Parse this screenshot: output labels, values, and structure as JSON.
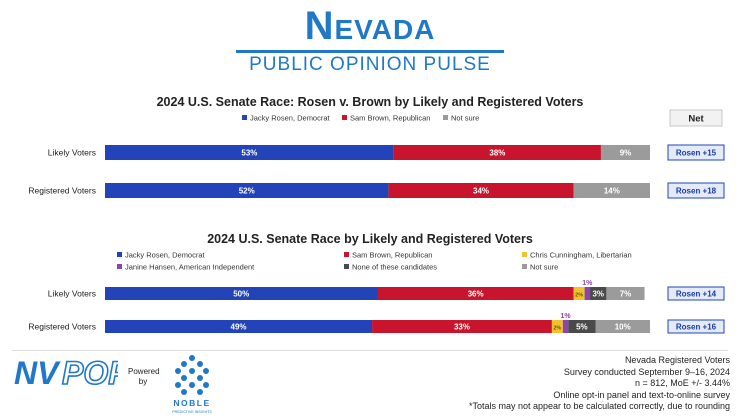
{
  "header": {
    "logo_title": "Nevada",
    "logo_subtitle": "PUBLIC OPINION PULSE"
  },
  "colors": {
    "rosen": "#2244b8",
    "brown": "#c8142c",
    "not_sure": "#9b9b9b",
    "cunningham": "#f2c12e",
    "hansen": "#8e44ad",
    "none": "#4a4a4a",
    "net_box_border": "#2244b8",
    "net_box_fill": "#e3ebf8",
    "brand": "#1f78c8"
  },
  "net_label": "Net",
  "chart_data": [
    {
      "type": "bar",
      "orientation": "horizontal-stacked",
      "title": "2024 U.S. Senate Race: Rosen v. Brown by Likely and Registered Voters",
      "categories": [
        "Likely Voters",
        "Registered Voters"
      ],
      "xlim": [
        0,
        100
      ],
      "legend_position": "top",
      "series": [
        {
          "name": "Jacky Rosen, Democrat",
          "color_key": "rosen",
          "values": [
            53,
            52
          ],
          "labels": [
            "53%",
            "52%"
          ]
        },
        {
          "name": "Sam Brown, Republican",
          "color_key": "brown",
          "values": [
            38,
            34
          ],
          "labels": [
            "38%",
            "34%"
          ]
        },
        {
          "name": "Not sure",
          "color_key": "not_sure",
          "values": [
            9,
            14
          ],
          "labels": [
            "9%",
            "14%"
          ]
        }
      ],
      "net": [
        "Rosen +15",
        "Rosen +18"
      ]
    },
    {
      "type": "bar",
      "orientation": "horizontal-stacked",
      "title": "2024 U.S. Senate Race by Likely and Registered Voters",
      "categories": [
        "Likely Voters",
        "Registered Voters"
      ],
      "xlim": [
        0,
        100
      ],
      "legend_position": "top",
      "series": [
        {
          "name": "Jacky Rosen, Democrat",
          "color_key": "rosen",
          "values": [
            50,
            49
          ],
          "labels": [
            "50%",
            "49%"
          ]
        },
        {
          "name": "Sam Brown, Republican",
          "color_key": "brown",
          "values": [
            36,
            33
          ],
          "labels": [
            "36%",
            "33%"
          ]
        },
        {
          "name": "Chris Cunningham, Libertarian",
          "color_key": "cunningham",
          "values": [
            2,
            2
          ],
          "labels": [
            "2%",
            "2%"
          ]
        },
        {
          "name": "Janine Hansen, American Independent",
          "color_key": "hansen",
          "values": [
            1,
            1
          ],
          "labels": [
            "1%",
            "1%"
          ]
        },
        {
          "name": "None of these candidates",
          "color_key": "none",
          "values": [
            3,
            5
          ],
          "labels": [
            "3%",
            "5%"
          ]
        },
        {
          "name": "Not sure",
          "color_key": "not_sure",
          "values": [
            7,
            10
          ],
          "labels": [
            "7%",
            "10%"
          ]
        }
      ],
      "net": [
        "Rosen +14",
        "Rosen +16"
      ]
    }
  ],
  "footer": {
    "lines": [
      "Nevada Registered Voters",
      "Survey conducted September 9–16, 2024",
      "n = 812, MoE +/- 3.44%",
      "Online opt-in panel and text-to-online survey",
      "*Totals may not appear to be calculated correctly, due to rounding"
    ],
    "nvpop_logo_text": "NVPOP",
    "powered_by": "Powered by",
    "noble_name": "NOBLE",
    "noble_tagline": "PREDICTIVE INSIGHTS"
  }
}
